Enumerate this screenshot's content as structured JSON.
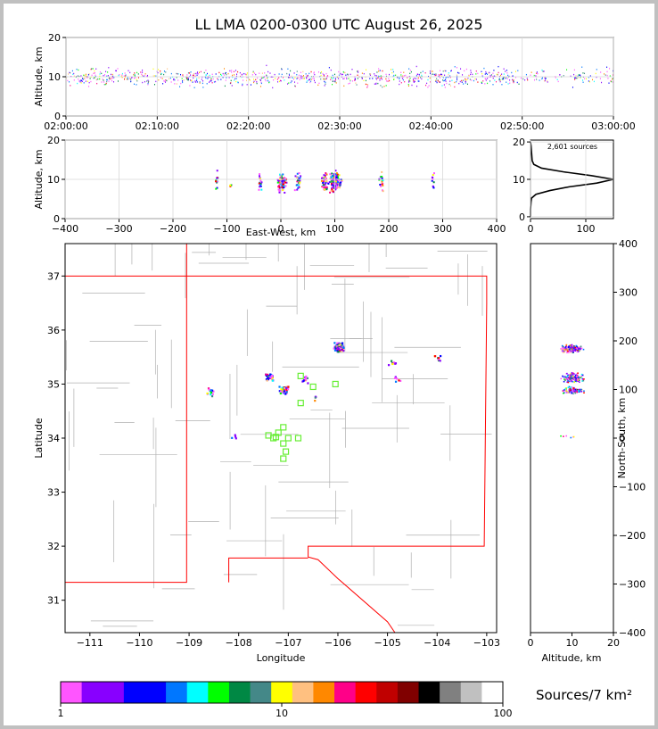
{
  "chart_data": {
    "type": "scatter",
    "title": "LL LMA 0200-0300 UTC August 26, 2025",
    "panels": {
      "time_height": {
        "ylabel": "Altitude, km",
        "ylim": [
          0,
          20
        ],
        "yticks": [
          "0",
          "10",
          "20"
        ],
        "xticks": [
          "02:00:00",
          "02:10:00",
          "02:20:00",
          "02:30:00",
          "02:40:00",
          "02:50:00",
          "03:00:00"
        ]
      },
      "ew_height": {
        "ylabel": "Altitude, km",
        "xlabel": "East-West, km",
        "xlim": [
          -400,
          400
        ],
        "ylim": [
          0,
          20
        ],
        "xticks": [
          "−400",
          "−300",
          "−200",
          "−100",
          "0",
          "100",
          "200",
          "300",
          "400"
        ],
        "yticks": [
          "0",
          "10",
          "20"
        ]
      },
      "histogram": {
        "annotation": "2,601 sources",
        "xticks": [
          "0",
          "100"
        ],
        "yticks": [
          "0",
          "10",
          "20"
        ],
        "profile": [
          [
            0,
            0
          ],
          [
            0,
            2
          ],
          [
            1,
            4
          ],
          [
            2,
            5
          ],
          [
            10,
            6
          ],
          [
            35,
            7
          ],
          [
            70,
            8
          ],
          [
            120,
            9
          ],
          [
            150,
            10
          ],
          [
            110,
            11
          ],
          [
            60,
            12
          ],
          [
            20,
            13
          ],
          [
            6,
            14
          ],
          [
            3,
            15
          ],
          [
            2,
            17
          ],
          [
            1,
            19
          ],
          [
            0,
            20
          ]
        ]
      },
      "plan": {
        "xlabel": "Longitude",
        "ylabel": "Latitude",
        "xlim": [
          -111.5,
          -102.8
        ],
        "ylim": [
          30.4,
          37.6
        ],
        "xticks": [
          "−111",
          "−110",
          "−109",
          "−108",
          "−107",
          "−106",
          "−105",
          "−104",
          "−103"
        ],
        "yticks": [
          "31",
          "32",
          "33",
          "34",
          "35",
          "36",
          "37"
        ]
      },
      "ns_height": {
        "xlabel": "Altitude, km",
        "ylabel": "North-South, km",
        "xlim": [
          0,
          20
        ],
        "ylim": [
          -400,
          400
        ],
        "xticks": [
          "0",
          "10",
          "20"
        ],
        "yticks": [
          "−400",
          "−300",
          "−200",
          "−100",
          "0",
          "100",
          "200",
          "300",
          "400"
        ]
      }
    },
    "clusters_plan": [
      {
        "lon": -106.0,
        "lat": 35.7,
        "n": 120
      },
      {
        "lon": -107.1,
        "lat": 34.9,
        "n": 60
      },
      {
        "lon": -107.4,
        "lat": 35.15,
        "n": 40
      },
      {
        "lon": -108.6,
        "lat": 34.88,
        "n": 14
      },
      {
        "lon": -104.9,
        "lat": 35.4,
        "n": 8
      },
      {
        "lon": -104.8,
        "lat": 35.12,
        "n": 6
      },
      {
        "lon": -104.0,
        "lat": 35.5,
        "n": 8
      },
      {
        "lon": -106.7,
        "lat": 35.1,
        "n": 10
      },
      {
        "lon": -106.5,
        "lat": 34.75,
        "n": 4
      },
      {
        "lon": -108.1,
        "lat": 34.05,
        "n": 4
      }
    ],
    "stations": [
      [
        -107.2,
        34.1
      ],
      [
        -107.1,
        34.2
      ],
      [
        -107.0,
        34.0
      ],
      [
        -106.8,
        34.0
      ],
      [
        -107.3,
        34.0
      ],
      [
        -107.4,
        34.05
      ],
      [
        -107.1,
        33.9
      ],
      [
        -107.05,
        33.75
      ],
      [
        -107.1,
        33.62
      ],
      [
        -106.75,
        34.65
      ],
      [
        -106.5,
        34.95
      ],
      [
        -106.05,
        35.0
      ],
      [
        -106.75,
        35.15
      ],
      [
        -107.25,
        34.02
      ]
    ],
    "colorbar": {
      "label": "Sources/7 km²",
      "ticks": [
        "1",
        "10",
        "100"
      ],
      "colors": [
        "#ff55ff",
        "#8800ff",
        "#8800ff",
        "#0000ff",
        "#0000ff",
        "#0077ff",
        "#00ffff",
        "#00ff00",
        "#008844",
        "#448888",
        "#ffff00",
        "#ffc080",
        "#ff8800",
        "#ff0088",
        "#ff0000",
        "#c00000",
        "#800000",
        "#000000",
        "#808080",
        "#c0c0c0",
        "#ffffff"
      ]
    }
  }
}
